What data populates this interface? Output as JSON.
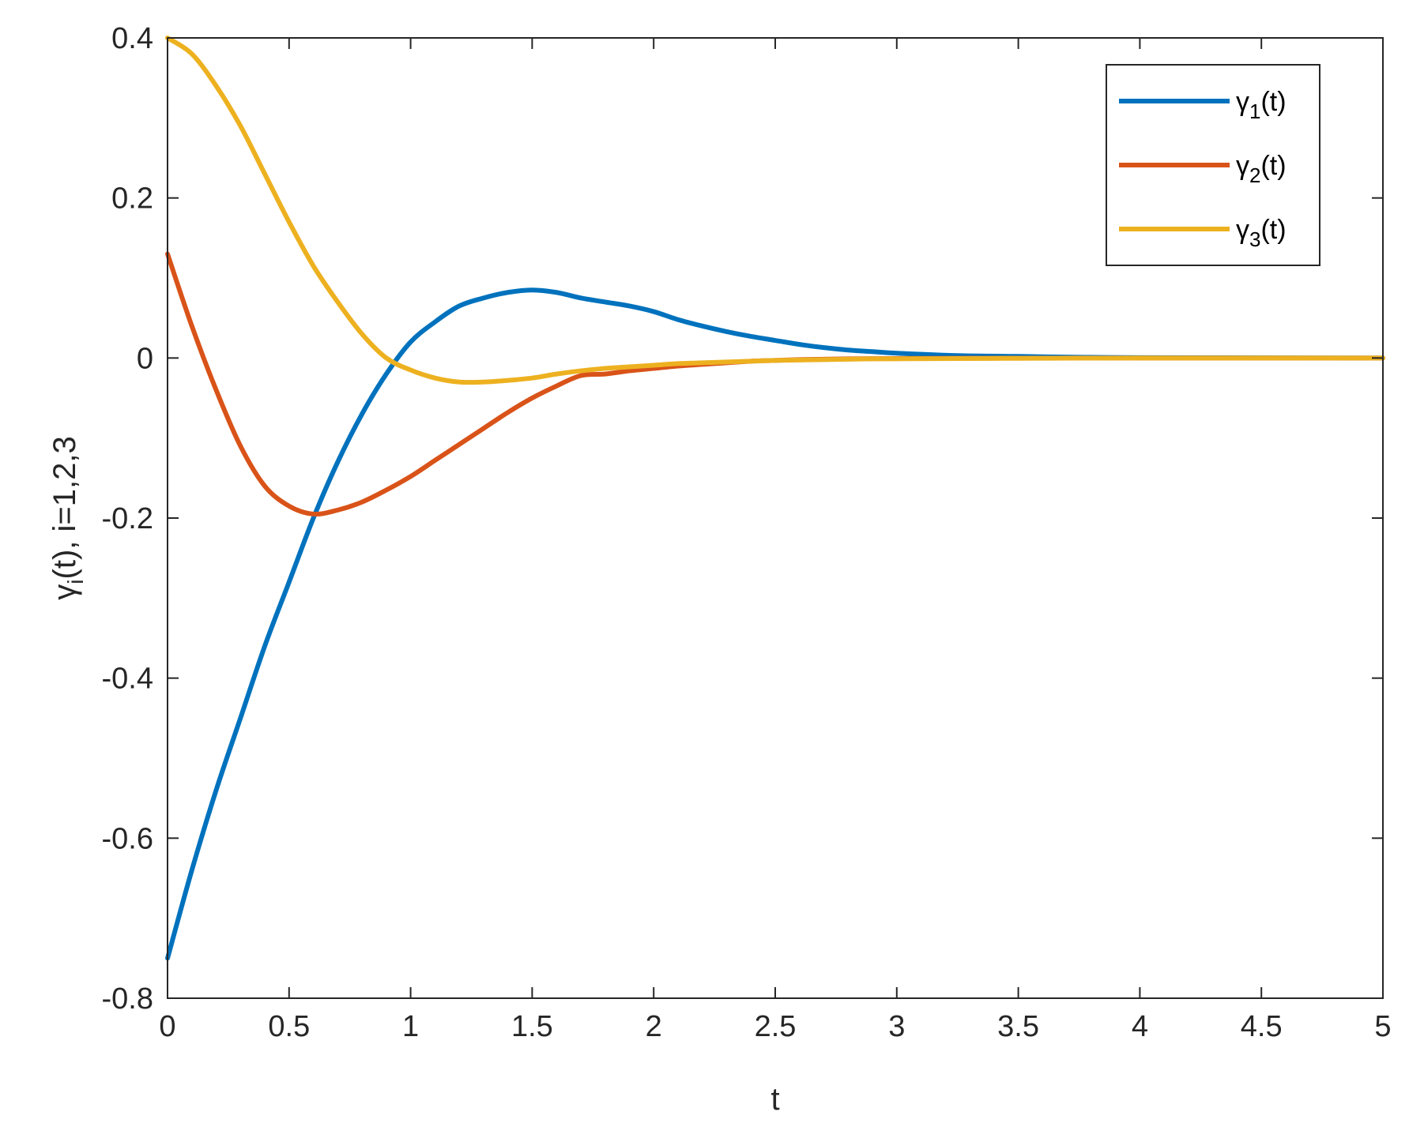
{
  "chart_data": {
    "type": "line",
    "xlabel": "t",
    "ylabel": "γi(t), i=1,2,3",
    "ylabel_parts": {
      "greek": "γ",
      "sub": "i",
      "rest": "(t), i=1,2,3"
    },
    "xlim": [
      0,
      5
    ],
    "ylim": [
      -0.8,
      0.4
    ],
    "xticks": [
      "0",
      "0.5",
      "1",
      "1.5",
      "2",
      "2.5",
      "3",
      "3.5",
      "4",
      "4.5",
      "5"
    ],
    "yticks": [
      "-0.8",
      "-0.6",
      "-0.4",
      "-0.2",
      "0",
      "0.2",
      "0.4"
    ],
    "grid": false,
    "legend_position": "top-right",
    "x": [
      0,
      0.1,
      0.2,
      0.3,
      0.4,
      0.5,
      0.6,
      0.7,
      0.8,
      0.9,
      1.0,
      1.1,
      1.2,
      1.3,
      1.4,
      1.5,
      1.6,
      1.7,
      1.8,
      1.9,
      2.0,
      2.1,
      2.2,
      2.3,
      2.4,
      2.5,
      2.6,
      2.7,
      2.8,
      2.9,
      3.0,
      3.25,
      3.5,
      3.75,
      4.0,
      4.5,
      5.0
    ],
    "series": [
      {
        "name": "γ1(t)",
        "label_parts": {
          "greek": "γ",
          "sub": "1",
          "rest": "(t)"
        },
        "color": "#0072BD",
        "values": [
          -0.75,
          -0.64,
          -0.54,
          -0.45,
          -0.36,
          -0.28,
          -0.2,
          -0.13,
          -0.07,
          -0.02,
          0.02,
          0.045,
          0.065,
          0.075,
          0.082,
          0.085,
          0.082,
          0.075,
          0.07,
          0.065,
          0.058,
          0.048,
          0.04,
          0.033,
          0.027,
          0.022,
          0.017,
          0.013,
          0.01,
          0.008,
          0.006,
          0.003,
          0.002,
          0.001,
          0.0005,
          0.0002,
          0.0
        ]
      },
      {
        "name": "γ2(t)",
        "label_parts": {
          "greek": "γ",
          "sub": "2",
          "rest": "(t)"
        },
        "color": "#D95319",
        "values": [
          0.13,
          0.04,
          -0.04,
          -0.11,
          -0.16,
          -0.185,
          -0.195,
          -0.19,
          -0.18,
          -0.165,
          -0.148,
          -0.128,
          -0.108,
          -0.088,
          -0.068,
          -0.05,
          -0.035,
          -0.022,
          -0.02,
          -0.016,
          -0.013,
          -0.01,
          -0.008,
          -0.006,
          -0.004,
          -0.003,
          -0.002,
          -0.0015,
          -0.001,
          -0.0008,
          -0.0006,
          -0.0003,
          -0.0002,
          -0.0001,
          0.0,
          0.0,
          0.0
        ]
      },
      {
        "name": "γ3(t)",
        "label_parts": {
          "greek": "γ",
          "sub": "3",
          "rest": "(t)"
        },
        "color": "#EDB120",
        "values": [
          0.4,
          0.38,
          0.34,
          0.29,
          0.23,
          0.17,
          0.115,
          0.07,
          0.03,
          0.0,
          -0.015,
          -0.025,
          -0.03,
          -0.03,
          -0.028,
          -0.025,
          -0.02,
          -0.016,
          -0.013,
          -0.011,
          -0.009,
          -0.007,
          -0.006,
          -0.005,
          -0.004,
          -0.003,
          -0.0025,
          -0.002,
          -0.0015,
          -0.001,
          -0.001,
          -0.0006,
          -0.0004,
          -0.0002,
          -0.0001,
          0.0,
          0.0
        ]
      }
    ]
  }
}
